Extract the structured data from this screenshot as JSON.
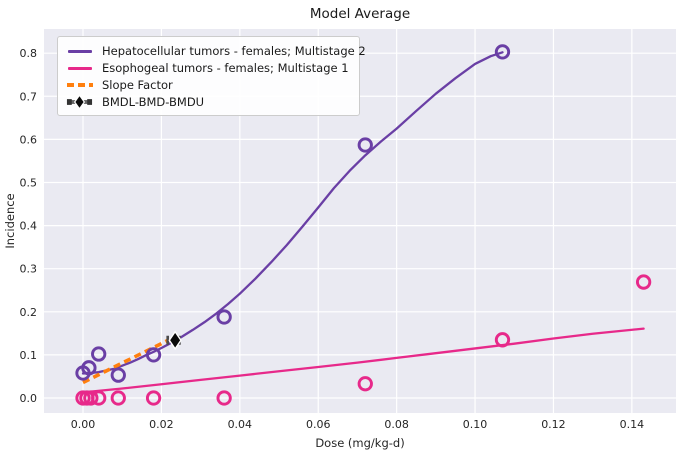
{
  "title": "Model Average",
  "colors": {
    "figure_bg": "#ffffff",
    "axes_bg": "#eaeaf2",
    "grid": "#ffffff",
    "hepatocellular_purple": "#6a3fa5",
    "esophogeal_pink": "#e7298a",
    "slope_factor_orange": "#ff7f0e",
    "bmd_diamond_black": "#0a0a0a",
    "errorbar_gray": "#4d4d4d",
    "tick_text": "#262626"
  },
  "legend": {
    "items": [
      {
        "label": "Hepatocellular tumors - females; Multistage 2",
        "swatch": "line",
        "color": "#6a3fa5"
      },
      {
        "label": "Esophogeal tumors - females; Multistage 1",
        "swatch": "line",
        "color": "#e7298a"
      },
      {
        "label": "Slope Factor",
        "swatch": "dashed",
        "color": "#ff7f0e"
      },
      {
        "label": "BMDL-BMD-BMDU",
        "swatch": "errorbar",
        "color": "#0a0a0a"
      }
    ]
  },
  "chart_data": {
    "type": "line",
    "title": "Model Average",
    "xlabel": "Dose (mg/kg-d)",
    "ylabel": "Incidence",
    "xlim": [
      -0.00995,
      0.15126
    ],
    "ylim": [
      -0.0348,
      0.8561
    ],
    "grid": true,
    "legend_position": "upper left",
    "x_ticks": [
      0.0,
      0.02,
      0.04,
      0.06,
      0.08,
      0.1,
      0.12,
      0.14
    ],
    "x_tick_labels": [
      "0.00",
      "0.02",
      "0.04",
      "0.06",
      "0.08",
      "0.10",
      "0.12",
      "0.14"
    ],
    "y_ticks": [
      0.0,
      0.1,
      0.2,
      0.3,
      0.4,
      0.5,
      0.6,
      0.7,
      0.8
    ],
    "y_tick_labels": [
      "0.0",
      "0.1",
      "0.2",
      "0.3",
      "0.4",
      "0.5",
      "0.6",
      "0.7",
      "0.8"
    ],
    "series": [
      {
        "name": "Hepatocellular tumors - females; Multistage 2",
        "kind": "model",
        "color": "#6a3fa5",
        "curve_x": [
          0,
          0.002,
          0.004,
          0.006,
          0.008,
          0.01,
          0.012,
          0.014,
          0.016,
          0.018,
          0.02,
          0.0225,
          0.025,
          0.028,
          0.031,
          0.034,
          0.037,
          0.04,
          0.044,
          0.048,
          0.052,
          0.056,
          0.06,
          0.064,
          0.068,
          0.072,
          0.076,
          0.08,
          0.085,
          0.09,
          0.095,
          0.1,
          0.104,
          0.107
        ],
        "curve_y": [
          0.057,
          0.058,
          0.06,
          0.064,
          0.068,
          0.075,
          0.082,
          0.09,
          0.099,
          0.107,
          0.116,
          0.128,
          0.141,
          0.158,
          0.176,
          0.196,
          0.218,
          0.242,
          0.277,
          0.315,
          0.355,
          0.398,
          0.442,
          0.487,
          0.527,
          0.563,
          0.595,
          0.625,
          0.666,
          0.706,
          0.742,
          0.775,
          0.793,
          0.802
        ],
        "scatter_x": [
          0,
          0.0015,
          0.004,
          0.009,
          0.018,
          0.036,
          0.072,
          0.107
        ],
        "scatter_y": [
          0.058,
          0.07,
          0.102,
          0.053,
          0.1,
          0.188,
          0.587,
          0.803
        ]
      },
      {
        "name": "Esophogeal tumors - females; Multistage 1",
        "kind": "model",
        "color": "#e7298a",
        "curve_x": [
          0,
          0.01,
          0.02,
          0.03,
          0.04,
          0.05,
          0.06,
          0.07,
          0.08,
          0.09,
          0.1,
          0.11,
          0.12,
          0.13,
          0.143
        ],
        "curve_y": [
          0.013,
          0.022,
          0.032,
          0.042,
          0.052,
          0.062,
          0.072,
          0.082,
          0.093,
          0.104,
          0.115,
          0.126,
          0.138,
          0.149,
          0.161
        ],
        "scatter_x": [
          0,
          0.001,
          0.002,
          0.004,
          0.009,
          0.018,
          0.036,
          0.072,
          0.107,
          0.143
        ],
        "scatter_y": [
          0,
          0,
          0,
          0,
          0,
          0,
          0,
          0.033,
          0.135,
          0.269
        ]
      },
      {
        "name": "Slope Factor",
        "kind": "dashed-line",
        "color": "#ff7f0e",
        "x": [
          0,
          0.0215
        ],
        "y": [
          0.036,
          0.133
        ]
      },
      {
        "name": "BMDL-BMD-BMDU",
        "kind": "errorbar-diamond",
        "bmdl": 0.0216,
        "bmd": 0.0235,
        "bmdu": 0.0246,
        "y": 0.134
      }
    ]
  }
}
